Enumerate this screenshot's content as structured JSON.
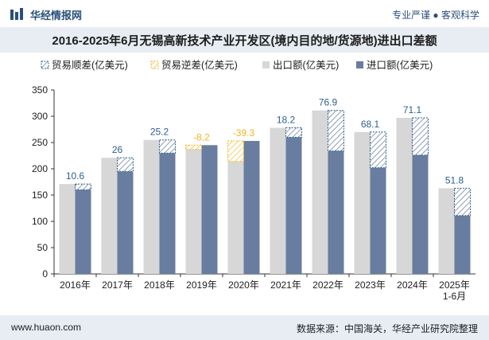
{
  "header": {
    "brand_name": "华经情报网",
    "tagline": "专业严谨 ● 客观科学"
  },
  "colors": {
    "export_bar": "#d7d7d7",
    "import_bar": "#687d9f",
    "surplus_label": "#2f5e8e",
    "deficit_label": "#f2b61e",
    "brand": "#2a4f7c"
  },
  "footer": {
    "site": "www.huaon.com",
    "source": "数据来源：中国海关，华经产业研究院整理"
  },
  "chart_data": {
    "type": "bar",
    "title": "2016-2025年6月无锡高新技术产业开发区(境内目的地/货源地)进出口差额",
    "categories": [
      "2016年",
      "2017年",
      "2018年",
      "2019年",
      "2020年",
      "2021年",
      "2022年",
      "2023年",
      "2024年",
      "2025年\n1-6月"
    ],
    "legend": [
      "贸易顺差(亿美元)",
      "贸易逆差(亿美元)",
      "出口额(亿美元)",
      "进口额(亿美元)"
    ],
    "legend_position": "top",
    "ylim": [
      0,
      350
    ],
    "yticks": [
      0,
      50,
      100,
      150,
      200,
      250,
      300,
      350
    ],
    "grid": false,
    "series": [
      {
        "name": "出口额(亿美元)",
        "values": [
          171,
          221,
          255,
          237,
          214,
          278,
          311,
          270,
          297,
          163
        ]
      },
      {
        "name": "进口额(亿美元)",
        "values": [
          160,
          195,
          230,
          245,
          253,
          260,
          234,
          202,
          226,
          111
        ]
      }
    ],
    "balance": {
      "values": [
        10.6,
        26,
        25.2,
        -8.2,
        -39.3,
        18.2,
        76.9,
        68.1,
        71.1,
        51.8
      ],
      "labels": [
        "10.6",
        "26",
        "25.2",
        "-8.2",
        "-39.3",
        "18.2",
        "76.9",
        "68.1",
        "71.1",
        "51.8"
      ]
    }
  }
}
